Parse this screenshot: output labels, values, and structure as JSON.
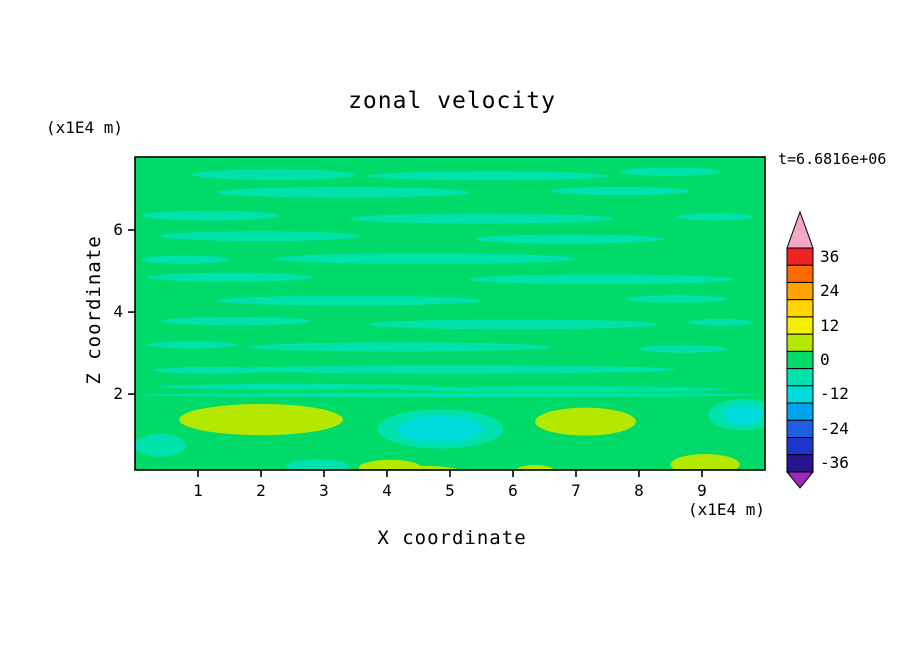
{
  "title": "zonal velocity",
  "timestamp": "t=6.6816e+06",
  "axes": {
    "x_label": "X coordinate",
    "z_label": "Z coordinate",
    "z_unit": "(x1E4 m)",
    "x_unit": "(x1E4 m)"
  },
  "chart_data": {
    "type": "heatmap",
    "subtype": "filled-contour",
    "title": "zonal velocity",
    "xlabel": "X coordinate",
    "ylabel": "Z coordinate",
    "x_unit": "(x1E4 m)",
    "z_unit": "(x1E4 m)",
    "time_annotation": "t=6.6816e+06",
    "xlim": [
      0,
      10
    ],
    "zlim": [
      0.15,
      7.78
    ],
    "x_ticks": [
      1,
      2,
      3,
      4,
      5,
      6,
      7,
      8,
      9
    ],
    "z_ticks": [
      2,
      4,
      6
    ],
    "grid": false,
    "legend_position": "right-colorbar",
    "colorbar": {
      "labels": [
        "36",
        "24",
        "12",
        "0",
        "-12",
        "-24",
        "-36"
      ],
      "level_step": 6,
      "band_colors": [
        "#ee2424",
        "#ff6a00",
        "#ffa200",
        "#ffd400",
        "#f6f000",
        "#b5e800",
        "#00da69",
        "#00e2ac",
        "#00dcdc",
        "#00a4f0",
        "#2060e0",
        "#2134cc",
        "#2a1590"
      ],
      "over_color": "#f4a6c6",
      "under_color": "#9a2bbe",
      "outline_color": "#000000"
    },
    "field": {
      "description": "Mostly near-zero zonal velocity (green band). Thin horizontal aquamarine streaks of weakly negative velocity aloft; yellow-green positive patches and cyan negative patches below z=2.",
      "base_band": 6,
      "features": [
        {
          "x": 2.2,
          "z": 7.35,
          "rx": 1.3,
          "ry": 0.13,
          "band": 7
        },
        {
          "x": 5.6,
          "z": 7.32,
          "rx": 1.9,
          "ry": 0.11,
          "band": 7
        },
        {
          "x": 8.5,
          "z": 7.42,
          "rx": 0.8,
          "ry": 0.1,
          "band": 7
        },
        {
          "x": 3.3,
          "z": 6.92,
          "rx": 2.0,
          "ry": 0.13,
          "band": 7
        },
        {
          "x": 7.7,
          "z": 6.95,
          "rx": 1.1,
          "ry": 0.1,
          "band": 7
        },
        {
          "x": 1.2,
          "z": 6.35,
          "rx": 1.1,
          "ry": 0.12,
          "band": 7
        },
        {
          "x": 5.5,
          "z": 6.28,
          "rx": 2.1,
          "ry": 0.12,
          "band": 7
        },
        {
          "x": 9.2,
          "z": 6.32,
          "rx": 0.6,
          "ry": 0.09,
          "band": 7
        },
        {
          "x": 2.0,
          "z": 5.85,
          "rx": 1.6,
          "ry": 0.12,
          "band": 7
        },
        {
          "x": 6.9,
          "z": 5.78,
          "rx": 1.5,
          "ry": 0.11,
          "band": 7
        },
        {
          "x": 0.8,
          "z": 5.28,
          "rx": 0.7,
          "ry": 0.1,
          "band": 7
        },
        {
          "x": 4.6,
          "z": 5.3,
          "rx": 2.4,
          "ry": 0.13,
          "band": 7
        },
        {
          "x": 1.5,
          "z": 4.85,
          "rx": 1.3,
          "ry": 0.11,
          "band": 7
        },
        {
          "x": 7.4,
          "z": 4.8,
          "rx": 2.1,
          "ry": 0.12,
          "band": 7
        },
        {
          "x": 3.4,
          "z": 4.28,
          "rx": 2.1,
          "ry": 0.12,
          "band": 7
        },
        {
          "x": 8.6,
          "z": 4.32,
          "rx": 0.8,
          "ry": 0.09,
          "band": 7
        },
        {
          "x": 1.6,
          "z": 3.78,
          "rx": 1.2,
          "ry": 0.1,
          "band": 7
        },
        {
          "x": 6.0,
          "z": 3.7,
          "rx": 2.3,
          "ry": 0.12,
          "band": 7
        },
        {
          "x": 9.3,
          "z": 3.75,
          "rx": 0.5,
          "ry": 0.08,
          "band": 7
        },
        {
          "x": 0.9,
          "z": 3.2,
          "rx": 0.7,
          "ry": 0.09,
          "band": 7
        },
        {
          "x": 4.2,
          "z": 3.15,
          "rx": 2.4,
          "ry": 0.11,
          "band": 7
        },
        {
          "x": 8.7,
          "z": 3.1,
          "rx": 0.7,
          "ry": 0.09,
          "band": 7
        },
        {
          "x": 1.2,
          "z": 2.58,
          "rx": 0.9,
          "ry": 0.08,
          "band": 7
        },
        {
          "x": 5.0,
          "z": 2.6,
          "rx": 3.6,
          "ry": 0.1,
          "band": 7
        },
        {
          "x": 2.6,
          "z": 2.18,
          "rx": 2.2,
          "ry": 0.07,
          "band": 7
        },
        {
          "x": 6.8,
          "z": 2.12,
          "rx": 2.6,
          "ry": 0.07,
          "band": 7
        },
        {
          "x": 5.0,
          "z": 1.98,
          "rx": 4.95,
          "ry": 0.05,
          "band": 7
        },
        {
          "x": 0.4,
          "z": 0.75,
          "rx": 0.4,
          "ry": 0.28,
          "band": 7
        },
        {
          "x": 2.9,
          "z": 0.25,
          "rx": 0.5,
          "ry": 0.16,
          "band": 7
        },
        {
          "x": 4.85,
          "z": 1.15,
          "rx": 1.0,
          "ry": 0.48,
          "band": 7
        },
        {
          "x": 4.85,
          "z": 1.15,
          "rx": 0.68,
          "ry": 0.32,
          "band": 8
        },
        {
          "x": 9.65,
          "z": 1.5,
          "rx": 0.55,
          "ry": 0.38,
          "band": 7
        },
        {
          "x": 9.65,
          "z": 1.5,
          "rx": 0.33,
          "ry": 0.24,
          "band": 8
        },
        {
          "x": 2.0,
          "z": 1.38,
          "rx": 1.3,
          "ry": 0.38,
          "band": 5
        },
        {
          "x": 7.15,
          "z": 1.33,
          "rx": 0.8,
          "ry": 0.34,
          "band": 5
        },
        {
          "x": 4.05,
          "z": 0.2,
          "rx": 0.5,
          "ry": 0.2,
          "band": 5
        },
        {
          "x": 4.6,
          "z": 0.1,
          "rx": 0.6,
          "ry": 0.15,
          "band": 5
        },
        {
          "x": 6.35,
          "z": 0.14,
          "rx": 0.3,
          "ry": 0.13,
          "band": 5
        },
        {
          "x": 9.05,
          "z": 0.28,
          "rx": 0.55,
          "ry": 0.26,
          "band": 5
        }
      ]
    }
  }
}
